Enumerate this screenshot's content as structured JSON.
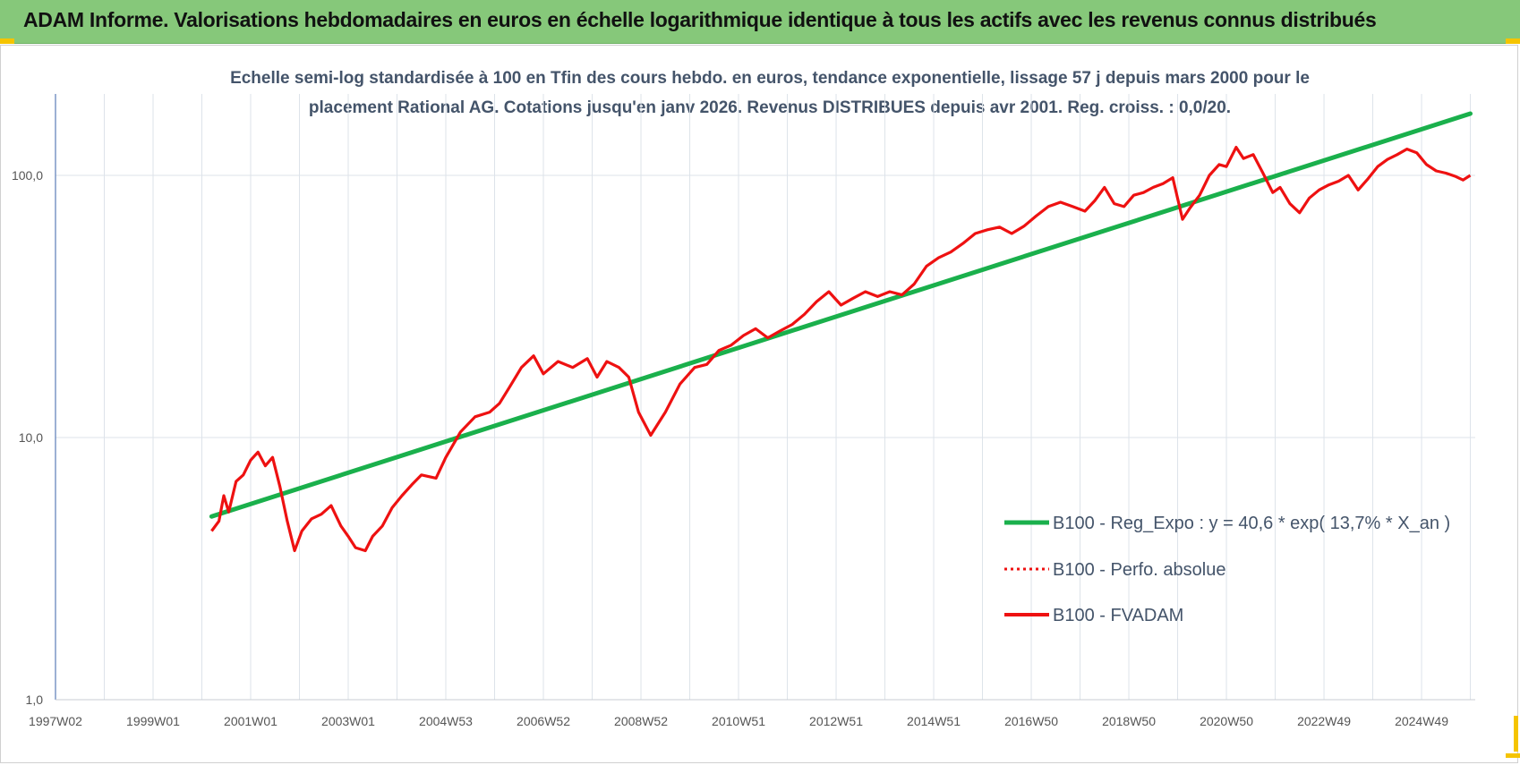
{
  "banner": {
    "title": "ADAM Informe. Valorisations hebdomadaires en euros en échelle logarithmique identique à tous les actifs avec les revenus connus distribués"
  },
  "colors": {
    "banner": "#86c87a",
    "regression": "#1ab04c",
    "fvadam": "#ee1111",
    "perfo": "#ee1111",
    "subtitle_text": "#44546a",
    "grid": "#dde3ea",
    "corner_marks": "#f5c400"
  },
  "chart_data": {
    "type": "line",
    "subtitle_line1": "Echelle semi-log standardisée à 100 en Tfin des cours hebdo. en euros, tendance exponentielle, lissage 57 j depuis mars 2000 pour le",
    "subtitle_line2": "placement Rational AG. Cotations jusqu'en janv 2026. Revenus DISTRIBUES depuis avr 2001. Reg. croiss. : 0,0/20.",
    "y_scale": "log",
    "ylim": [
      1,
      180
    ],
    "y_ticks": [
      "100,0",
      "10,0",
      "1,0"
    ],
    "y_tick_values": [
      100,
      10,
      1
    ],
    "xlim": [
      1997.0,
      2026.1
    ],
    "x_tick_labels": [
      "1997W02",
      "1999W01",
      "2001W01",
      "2003W01",
      "2004W53",
      "2006W52",
      "2008W52",
      "2010W51",
      "2012W51",
      "2014W51",
      "2016W50",
      "2018W50",
      "2020W50",
      "2022W49",
      "2024W49"
    ],
    "x_tick_values": [
      1997.0,
      1999.0,
      2001.0,
      2003.0,
      2005.0,
      2007.0,
      2009.0,
      2011.0,
      2013.0,
      2015.0,
      2017.0,
      2019.0,
      2021.0,
      2023.0,
      2025.0
    ],
    "grid": true,
    "legend_position": "bottom-right",
    "series": [
      {
        "name": "B100 - Reg_Expo : y = 40,6 * exp( 13,7% *  X_an )",
        "style": "solid-thick",
        "x": [
          2000.2,
          2026.0
        ],
        "y": [
          5.0,
          172.0
        ]
      },
      {
        "name": "B100 - Perfo. absolue",
        "style": "dotted",
        "x": [],
        "y": []
      },
      {
        "name": "B100 - FVADAM",
        "style": "solid",
        "x": [
          2000.2,
          2000.35,
          2000.45,
          2000.55,
          2000.7,
          2000.85,
          2001.0,
          2001.15,
          2001.3,
          2001.45,
          2001.6,
          2001.75,
          2001.9,
          2002.05,
          2002.25,
          2002.45,
          2002.65,
          2002.85,
          2003.0,
          2003.15,
          2003.35,
          2003.5,
          2003.7,
          2003.9,
          2004.1,
          2004.3,
          2004.5,
          2004.8,
          2005.0,
          2005.3,
          2005.6,
          2005.9,
          2006.1,
          2006.3,
          2006.55,
          2006.8,
          2007.0,
          2007.3,
          2007.6,
          2007.9,
          2008.1,
          2008.3,
          2008.55,
          2008.75,
          2008.95,
          2009.2,
          2009.5,
          2009.8,
          2010.1,
          2010.35,
          2010.6,
          2010.85,
          2011.1,
          2011.35,
          2011.6,
          2011.85,
          2012.1,
          2012.35,
          2012.6,
          2012.85,
          2013.1,
          2013.35,
          2013.6,
          2013.85,
          2014.1,
          2014.35,
          2014.6,
          2014.85,
          2015.1,
          2015.35,
          2015.6,
          2015.85,
          2016.1,
          2016.35,
          2016.6,
          2016.85,
          2017.1,
          2017.35,
          2017.6,
          2017.85,
          2018.1,
          2018.3,
          2018.5,
          2018.7,
          2018.9,
          2019.1,
          2019.3,
          2019.5,
          2019.7,
          2019.9,
          2020.1,
          2020.25,
          2020.45,
          2020.65,
          2020.85,
          2021.0,
          2021.2,
          2021.35,
          2021.55,
          2021.75,
          2021.95,
          2022.1,
          2022.3,
          2022.5,
          2022.7,
          2022.9,
          2023.1,
          2023.3,
          2023.5,
          2023.7,
          2023.9,
          2024.1,
          2024.3,
          2024.5,
          2024.7,
          2024.9,
          2025.1,
          2025.3,
          2025.5,
          2025.7,
          2025.85,
          2026.0
        ],
        "y": [
          4.4,
          4.8,
          6.0,
          5.2,
          6.8,
          7.2,
          8.2,
          8.8,
          7.8,
          8.4,
          6.5,
          4.8,
          3.7,
          4.4,
          4.9,
          5.1,
          5.5,
          4.6,
          4.2,
          3.8,
          3.7,
          4.2,
          4.6,
          5.4,
          6.0,
          6.6,
          7.2,
          7.0,
          8.4,
          10.5,
          12.0,
          12.5,
          13.5,
          15.5,
          18.5,
          20.5,
          17.5,
          19.5,
          18.5,
          20.0,
          17.0,
          19.5,
          18.5,
          17.0,
          12.5,
          10.2,
          12.5,
          16.0,
          18.5,
          19.0,
          21.5,
          22.5,
          24.5,
          26.0,
          24.0,
          25.5,
          27.0,
          29.5,
          33.0,
          36.0,
          32.0,
          34.0,
          36.0,
          34.5,
          36.0,
          35.0,
          38.5,
          45.0,
          48.5,
          51.0,
          55.0,
          60.0,
          62.0,
          63.5,
          60.0,
          64.0,
          70.0,
          76.0,
          79.0,
          76.0,
          73.0,
          80.0,
          90.0,
          78.0,
          76.0,
          84.0,
          86.0,
          90.0,
          93.0,
          98.0,
          68.0,
          75.0,
          84.0,
          100.0,
          110.0,
          108.0,
          128.0,
          116.0,
          120.0,
          102.0,
          86.0,
          90.0,
          78.0,
          72.0,
          82.0,
          88.0,
          92.0,
          95.0,
          100.0,
          88.0,
          97.0,
          108.0,
          115.0,
          120.0,
          126.0,
          122.0,
          110.0,
          104.0,
          102.0,
          99.0,
          96.0,
          100.0
        ]
      }
    ]
  }
}
